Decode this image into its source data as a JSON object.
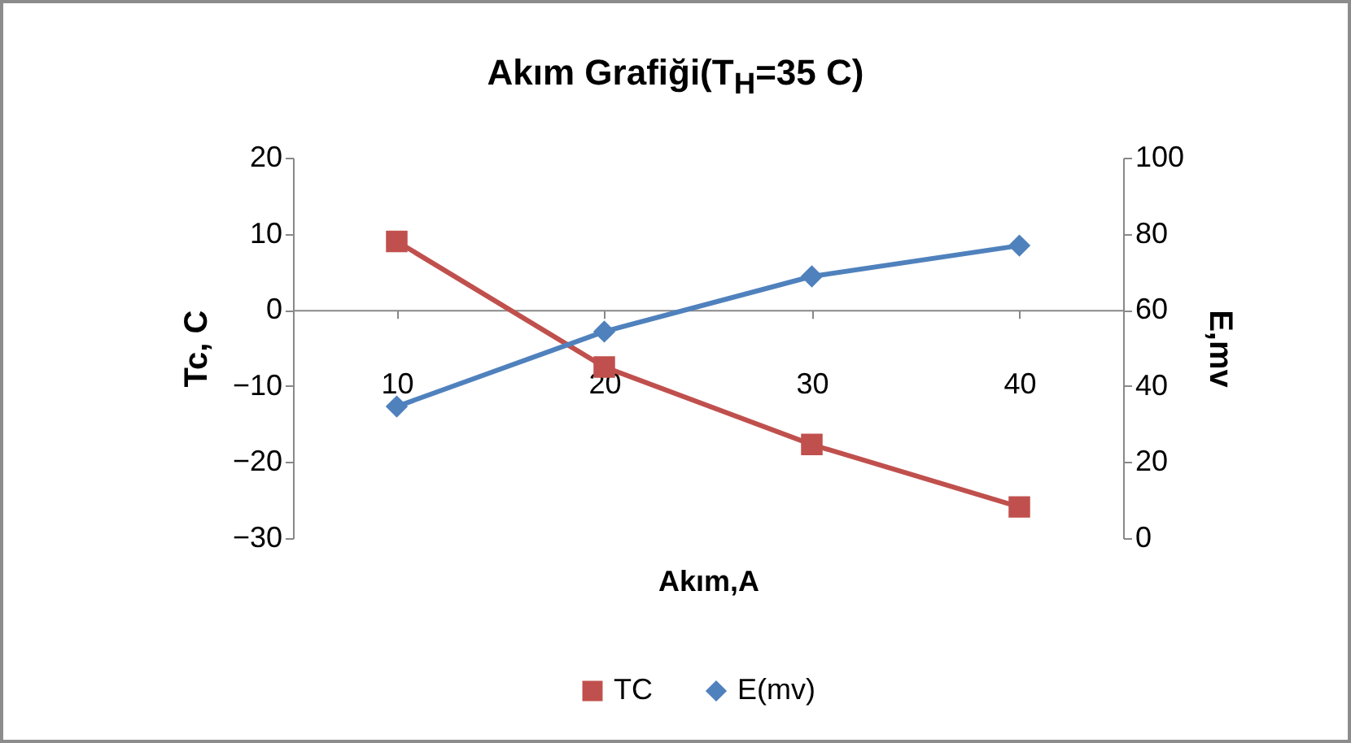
{
  "chart_data": {
    "type": "line",
    "title": "Akım Grafiği(T$_{H}$=35 C)",
    "xlabel": "Akım,A",
    "ylabel": "Tc, C",
    "y2label": "E,mv",
    "categories": [
      "10",
      "20",
      "30",
      "40"
    ],
    "series": [
      {
        "name": "TC",
        "color": "#c0504d",
        "marker": "square",
        "values": [
          9,
          -7.5,
          -17.7,
          -25.9
        ]
      },
      {
        "name": "E(mv)",
        "color": "#4f81bd",
        "marker": "diamond",
        "axis": "y2",
        "values": [
          34.6,
          54.3,
          68.8,
          76.9
        ]
      }
    ],
    "ylim": [
      -30,
      20
    ],
    "yticks": [
      -30,
      -20,
      -10,
      0,
      10,
      20
    ],
    "y2lim": [
      0,
      100
    ],
    "y2ticks": [
      0,
      20,
      40,
      60,
      80,
      100
    ],
    "grid": false,
    "legend": "bottom"
  }
}
